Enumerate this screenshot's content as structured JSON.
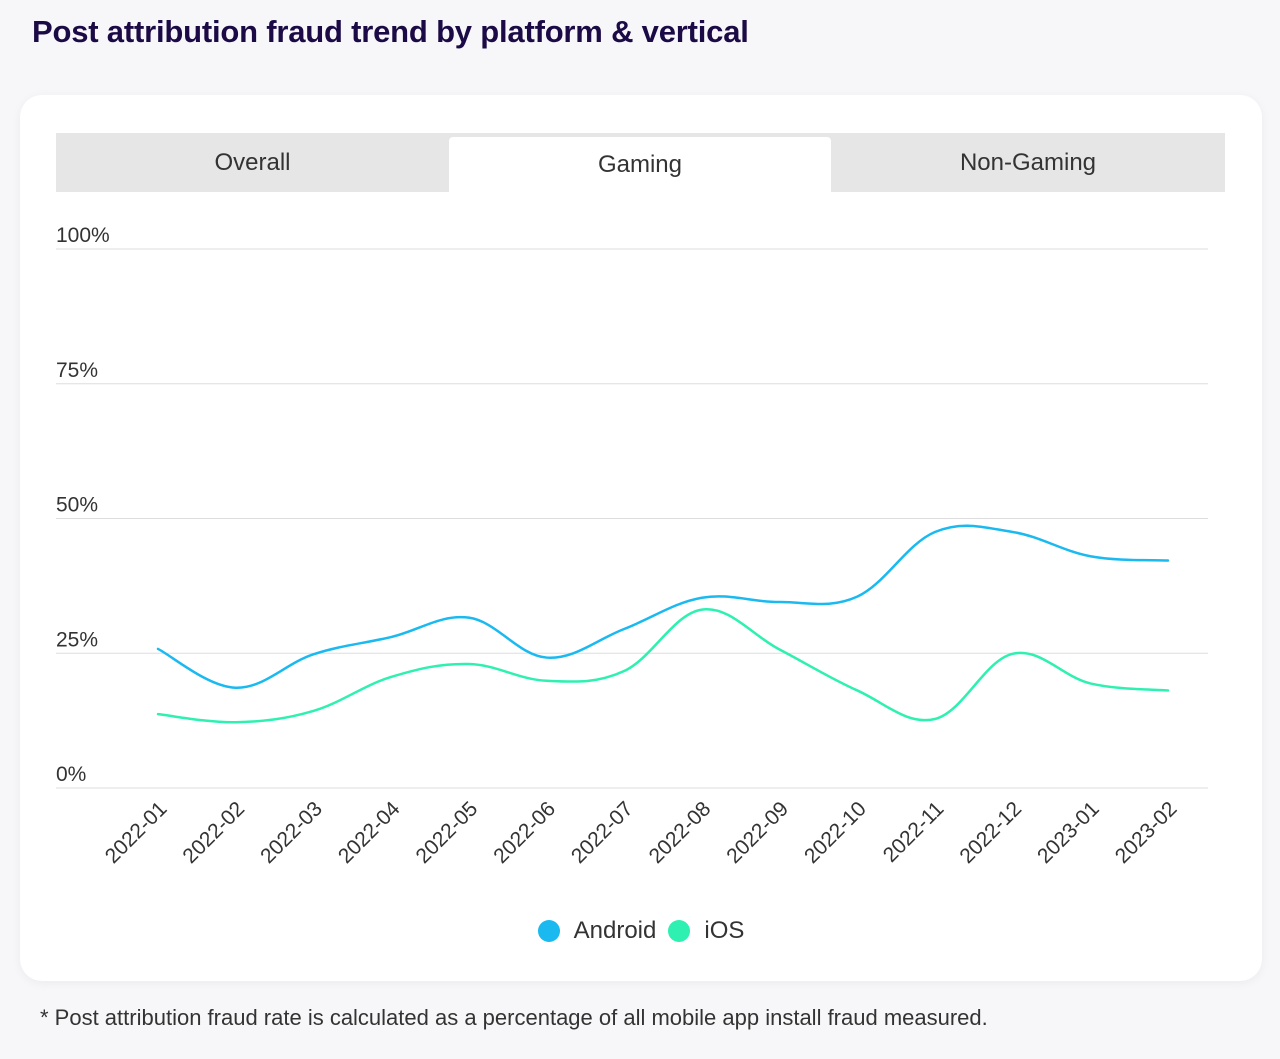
{
  "title": "Post attribution fraud trend by platform & vertical",
  "tabs": [
    {
      "label": "Overall",
      "active": false
    },
    {
      "label": "Gaming",
      "active": true
    },
    {
      "label": "Non-Gaming",
      "active": false
    }
  ],
  "footnote": "* Post attribution fraud rate is calculated as a percentage of all mobile app install fraud measured.",
  "colors": {
    "android": "#1ab9f0",
    "ios": "#2ef0b0",
    "title": "#1b0a45",
    "grid": "#dddddd"
  },
  "chart_data": {
    "type": "line",
    "categories": [
      "2022-01",
      "2022-02",
      "2022-03",
      "2022-04",
      "2022-05",
      "2022-06",
      "2022-07",
      "2022-08",
      "2022-09",
      "2022-10",
      "2022-11",
      "2022-12",
      "2023-01",
      "2023-02"
    ],
    "y_ticks": [
      {
        "value": 0,
        "label": "0%"
      },
      {
        "value": 25,
        "label": "25%"
      },
      {
        "value": 50,
        "label": "50%"
      },
      {
        "value": 75,
        "label": "75%"
      },
      {
        "value": 100,
        "label": "100%"
      }
    ],
    "ylim": [
      0,
      100
    ],
    "grid": true,
    "legend_position": "bottom-center",
    "series": [
      {
        "name": "Android",
        "color": "#1ab9f0",
        "values": [
          25.8,
          18.6,
          24.8,
          28.0,
          31.6,
          24.2,
          29.5,
          35.3,
          34.5,
          35.5,
          47.5,
          47.5,
          43.0,
          42.2
        ]
      },
      {
        "name": "iOS",
        "color": "#2ef0b0",
        "values": [
          13.7,
          12.2,
          14.3,
          20.6,
          23.0,
          19.9,
          21.7,
          33.1,
          25.7,
          18.1,
          12.8,
          24.9,
          19.4,
          18.1
        ]
      }
    ]
  }
}
